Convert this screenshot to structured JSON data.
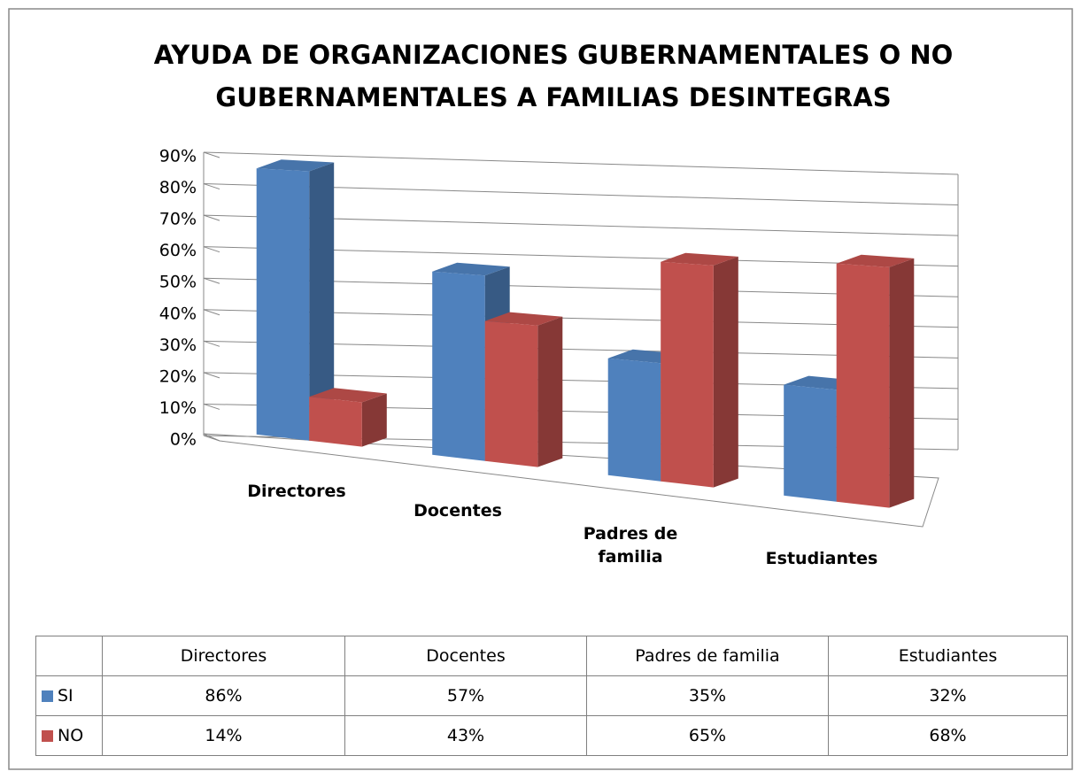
{
  "chart_data": {
    "type": "bar3d",
    "title": "AYUDA DE ORGANIZACIONES GUBERNAMENTALES O NO GUBERNAMENTALES A FAMILIAS DESINTEGRAS",
    "categories": [
      "Directores",
      "Docentes",
      "Padres de familia",
      "Estudiantes"
    ],
    "series": [
      {
        "name": "SI",
        "color": "#4f81bd",
        "values": [
          86,
          57,
          35,
          32
        ],
        "value_labels": [
          "86%",
          "57%",
          "35%",
          "32%"
        ]
      },
      {
        "name": "NO",
        "color": "#c0504d",
        "values": [
          14,
          43,
          65,
          68
        ],
        "value_labels": [
          "14%",
          "43%",
          "65%",
          "68%"
        ]
      }
    ],
    "ylim": [
      0,
      90
    ],
    "yticks": [
      {
        "value": 0,
        "label": "0%"
      },
      {
        "value": 10,
        "label": "10%"
      },
      {
        "value": 20,
        "label": "20%"
      },
      {
        "value": 30,
        "label": "30%"
      },
      {
        "value": 40,
        "label": "40%"
      },
      {
        "value": 50,
        "label": "50%"
      },
      {
        "value": 60,
        "label": "60%"
      },
      {
        "value": 70,
        "label": "70%"
      },
      {
        "value": 80,
        "label": "80%"
      },
      {
        "value": 90,
        "label": "90%"
      }
    ],
    "grid": true
  }
}
